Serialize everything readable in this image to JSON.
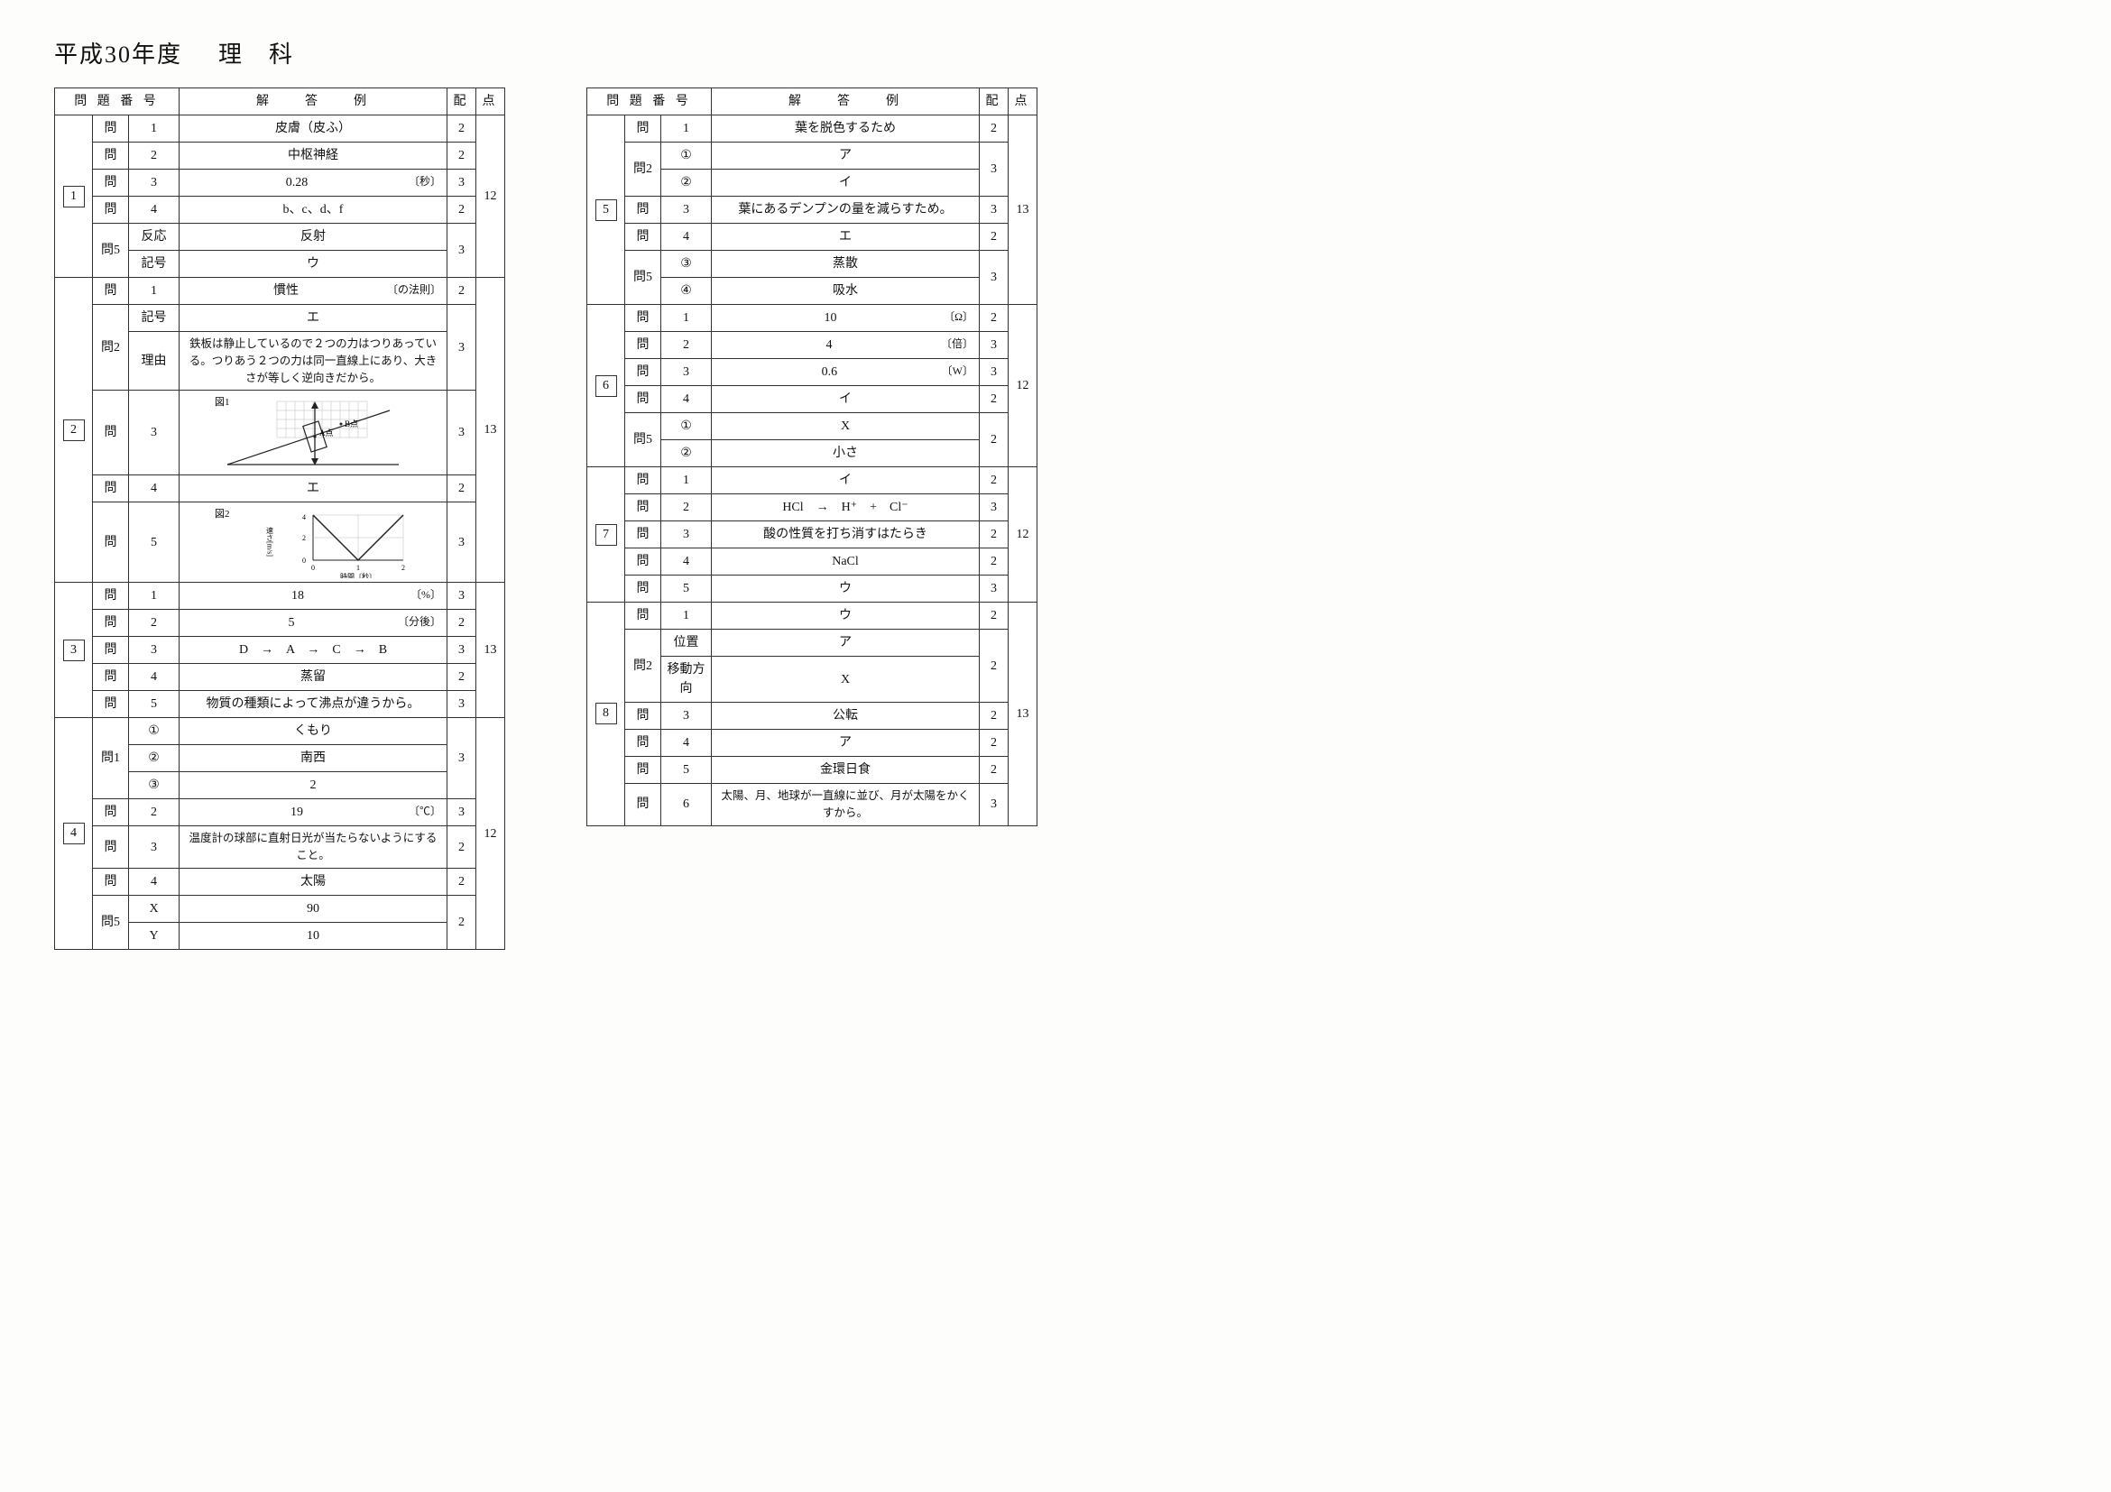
{
  "title_year": "平成30年度",
  "title_subject": "理　科",
  "headers": {
    "bangou": "問 題 番 号",
    "kaitou": "解　　答　　例",
    "hai": "配",
    "ten": "点"
  },
  "sections": [
    {
      "num": "1",
      "total": "12",
      "rows": [
        {
          "q": "問",
          "sub": "1",
          "ans": "皮膚（皮ふ）",
          "pts": "2"
        },
        {
          "q": "問",
          "sub": "2",
          "ans": "中枢神経",
          "pts": "2"
        },
        {
          "q": "問",
          "sub": "3",
          "ans": "0.28",
          "unit": "〔秒〕",
          "pts": "3"
        },
        {
          "q": "問",
          "sub": "4",
          "ans": "b、c、d、f",
          "pts": "2"
        },
        {
          "q": "問5",
          "sub": "反応",
          "ans": "反射",
          "pts": "3",
          "span": 2
        },
        {
          "q": "",
          "sub": "記号",
          "ans": "ウ"
        }
      ]
    },
    {
      "num": "2",
      "total": "13",
      "rows": [
        {
          "q": "問",
          "sub": "1",
          "ans": "慣性",
          "unit": "〔の法則〕",
          "pts": "2"
        },
        {
          "q": "問2",
          "sub": "記号",
          "ans": "エ",
          "pts": "3",
          "span": 2
        },
        {
          "q": "",
          "sub": "理由",
          "ans": "鉄板は静止しているので２つの力はつりあっている。つりあう２つの力は同一直線上にあり、大きさが等しく逆向きだから。",
          "left": true
        },
        {
          "q": "問",
          "sub": "3",
          "ans": "_FIG1_",
          "pts": "3"
        },
        {
          "q": "問",
          "sub": "4",
          "ans": "エ",
          "pts": "2"
        },
        {
          "q": "問",
          "sub": "5",
          "ans": "_FIG2_",
          "pts": "3"
        }
      ]
    },
    {
      "num": "3",
      "total": "13",
      "rows": [
        {
          "q": "問",
          "sub": "1",
          "ans": "18",
          "unit": "〔%〕",
          "pts": "3"
        },
        {
          "q": "問",
          "sub": "2",
          "ans": "5",
          "unit": "〔分後〕",
          "pts": "2"
        },
        {
          "q": "問",
          "sub": "3",
          "ans": "D　→　A　→　C　→　B",
          "pts": "3"
        },
        {
          "q": "問",
          "sub": "4",
          "ans": "蒸留",
          "pts": "2"
        },
        {
          "q": "問",
          "sub": "5",
          "ans": "物質の種類によって沸点が違うから。",
          "pts": "3"
        }
      ]
    },
    {
      "num": "4",
      "total": "12",
      "rows": [
        {
          "q": "問1",
          "sub": "_C1_",
          "ans": "くもり",
          "pts": "3",
          "span": 3
        },
        {
          "q": "",
          "sub": "_C2_",
          "ans": "南西"
        },
        {
          "q": "",
          "sub": "_C3_",
          "ans": "2"
        },
        {
          "q": "問",
          "sub": "2",
          "ans": "19",
          "unit": "〔℃〕",
          "pts": "3"
        },
        {
          "q": "問",
          "sub": "3",
          "ans": "温度計の球部に直射日光が当たらないようにすること。",
          "left": true,
          "pts": "2"
        },
        {
          "q": "問",
          "sub": "4",
          "ans": "太陽",
          "pts": "2"
        },
        {
          "q": "問5",
          "sub": "X",
          "ans": "90",
          "pts": "2",
          "span": 2
        },
        {
          "q": "",
          "sub": "Y",
          "ans": "10"
        }
      ]
    },
    {
      "num": "5",
      "total": "13",
      "rows": [
        {
          "q": "問",
          "sub": "1",
          "ans": "葉を脱色するため",
          "pts": "2"
        },
        {
          "q": "問2",
          "sub": "_C1_",
          "ans": "ア",
          "pts": "3",
          "span": 2
        },
        {
          "q": "",
          "sub": "_C2_",
          "ans": "イ"
        },
        {
          "q": "問",
          "sub": "3",
          "ans": "葉にあるデンプンの量を減らすため。",
          "pts": "3"
        },
        {
          "q": "問",
          "sub": "4",
          "ans": "エ",
          "pts": "2"
        },
        {
          "q": "問5",
          "sub": "_C3_",
          "ans": "蒸散",
          "pts": "3",
          "span": 2
        },
        {
          "q": "",
          "sub": "_C4_",
          "ans": "吸水"
        }
      ]
    },
    {
      "num": "6",
      "total": "12",
      "rows": [
        {
          "q": "問",
          "sub": "1",
          "ans": "10",
          "unit": "〔Ω〕",
          "pts": "2"
        },
        {
          "q": "問",
          "sub": "2",
          "ans": "4",
          "unit": "〔倍〕",
          "pts": "3"
        },
        {
          "q": "問",
          "sub": "3",
          "ans": "0.6",
          "unit": "〔W〕",
          "pts": "3"
        },
        {
          "q": "問",
          "sub": "4",
          "ans": "イ",
          "pts": "2"
        },
        {
          "q": "問5",
          "sub": "_C1_",
          "ans": "X",
          "pts": "2",
          "span": 2
        },
        {
          "q": "",
          "sub": "_C2_",
          "ans": "小さ"
        }
      ]
    },
    {
      "num": "7",
      "total": "12",
      "rows": [
        {
          "q": "問",
          "sub": "1",
          "ans": "イ",
          "pts": "2"
        },
        {
          "q": "問",
          "sub": "2",
          "ans": "HCl　→　H⁺　+　Cl⁻",
          "pts": "3"
        },
        {
          "q": "問",
          "sub": "3",
          "ans": "酸の性質を打ち消すはたらき",
          "pts": "2"
        },
        {
          "q": "問",
          "sub": "4",
          "ans": "NaCl",
          "pts": "2"
        },
        {
          "q": "問",
          "sub": "5",
          "ans": "ウ",
          "pts": "3"
        }
      ]
    },
    {
      "num": "8",
      "total": "13",
      "rows": [
        {
          "q": "問",
          "sub": "1",
          "ans": "ウ",
          "pts": "2"
        },
        {
          "q": "問2",
          "sub": "位置",
          "ans": "ア",
          "pts": "2",
          "span": 2
        },
        {
          "q": "",
          "sub": "移動方向",
          "ans": "X"
        },
        {
          "q": "問",
          "sub": "3",
          "ans": "公転",
          "pts": "2"
        },
        {
          "q": "問",
          "sub": "4",
          "ans": "ア",
          "pts": "2"
        },
        {
          "q": "問",
          "sub": "5",
          "ans": "金環日食",
          "pts": "2"
        },
        {
          "q": "問",
          "sub": "6",
          "ans": "太陽、月、地球が一直線に並び、月が太陽をかくすから。",
          "left": true,
          "pts": "3"
        }
      ]
    }
  ],
  "figures": {
    "fig1_label": "図1",
    "fig1_pointA": "A点",
    "fig1_pointB": "B点",
    "fig2_label": "図2",
    "fig2_ylabel": "速さ[m/s]",
    "fig2_xlabel": "時間〔秒〕",
    "fig2_yticks": [
      "0",
      "2",
      "4"
    ],
    "fig2_xticks": [
      "0",
      "1",
      "2"
    ]
  },
  "circled": {
    "_C1_": "①",
    "_C2_": "②",
    "_C3_": "③",
    "_C4_": "④"
  },
  "colors": {
    "border": "#333333",
    "background": "#fdfdfb",
    "text": "#111111"
  }
}
